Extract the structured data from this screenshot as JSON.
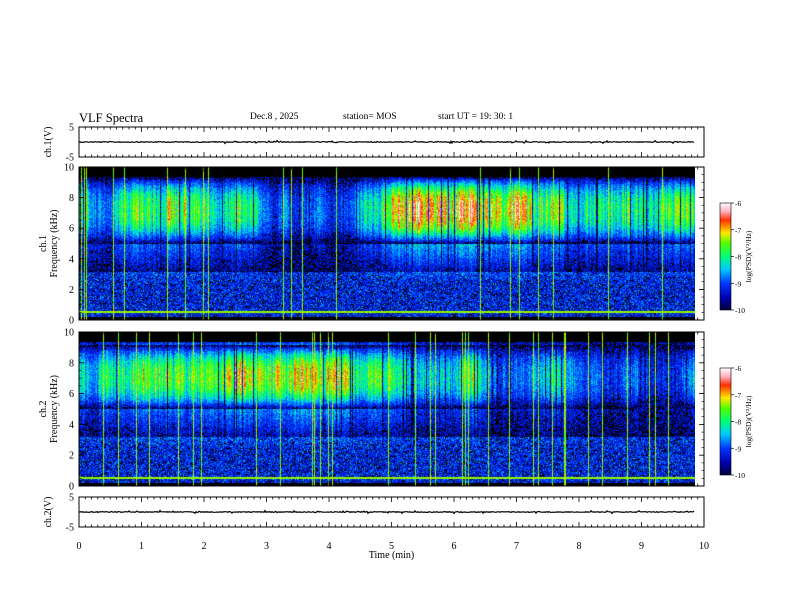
{
  "header": {
    "title": "VLF Spectra",
    "date": "Dec.8 , 2025",
    "station": "station= MOS",
    "start_ut": "start  UT =   19: 30: 1"
  },
  "chart_data": {
    "type": "heatmap",
    "title": "VLF Spectra",
    "xlabel": "Time  (min)",
    "xlim": [
      0,
      10
    ],
    "x_ticks": [
      "0",
      "1",
      "2",
      "3",
      "4",
      "5",
      "6",
      "7",
      "8",
      "9",
      "10"
    ],
    "data_extent_min": 9.85,
    "panels": [
      {
        "id": "ch1-waveform",
        "type": "line",
        "ylabel": "ch.1(V)",
        "ylim": [
          -5,
          5
        ],
        "y_ticks": [
          "5",
          "-5"
        ],
        "baseline_value": 0
      },
      {
        "id": "ch1-spectrogram",
        "type": "heatmap",
        "ylabel_line1": "ch.1",
        "ylabel_line2": "Frequency (kHz)",
        "ylim": [
          0,
          10
        ],
        "y_ticks": [
          "0",
          "2",
          "4",
          "6",
          "8",
          "10"
        ],
        "active_band_khz": [
          5,
          9.4
        ],
        "colorbar": {
          "label": "log(PSD)(V²/Hz)",
          "range": [
            -10,
            -6
          ],
          "ticks": [
            "-6",
            "-7",
            "-8",
            "-9",
            "-10"
          ]
        }
      },
      {
        "id": "ch2-spectrogram",
        "type": "heatmap",
        "ylabel_line1": "ch.2",
        "ylabel_line2": "Frequency (kHz)",
        "ylim": [
          0,
          10
        ],
        "y_ticks": [
          "0",
          "2",
          "4",
          "6",
          "8",
          "10"
        ],
        "active_band_khz": [
          5,
          9.2
        ],
        "colorbar": {
          "label": "log(PSD)(V²/Hz)",
          "range": [
            -10,
            -6
          ],
          "ticks": [
            "-6",
            "-7",
            "-8",
            "-9",
            "-10"
          ]
        }
      },
      {
        "id": "ch2-waveform",
        "type": "line",
        "ylabel": "ch.2(V)",
        "ylim": [
          -5,
          5
        ],
        "y_ticks": [
          "5",
          "-5"
        ],
        "baseline_value": 0
      }
    ]
  }
}
